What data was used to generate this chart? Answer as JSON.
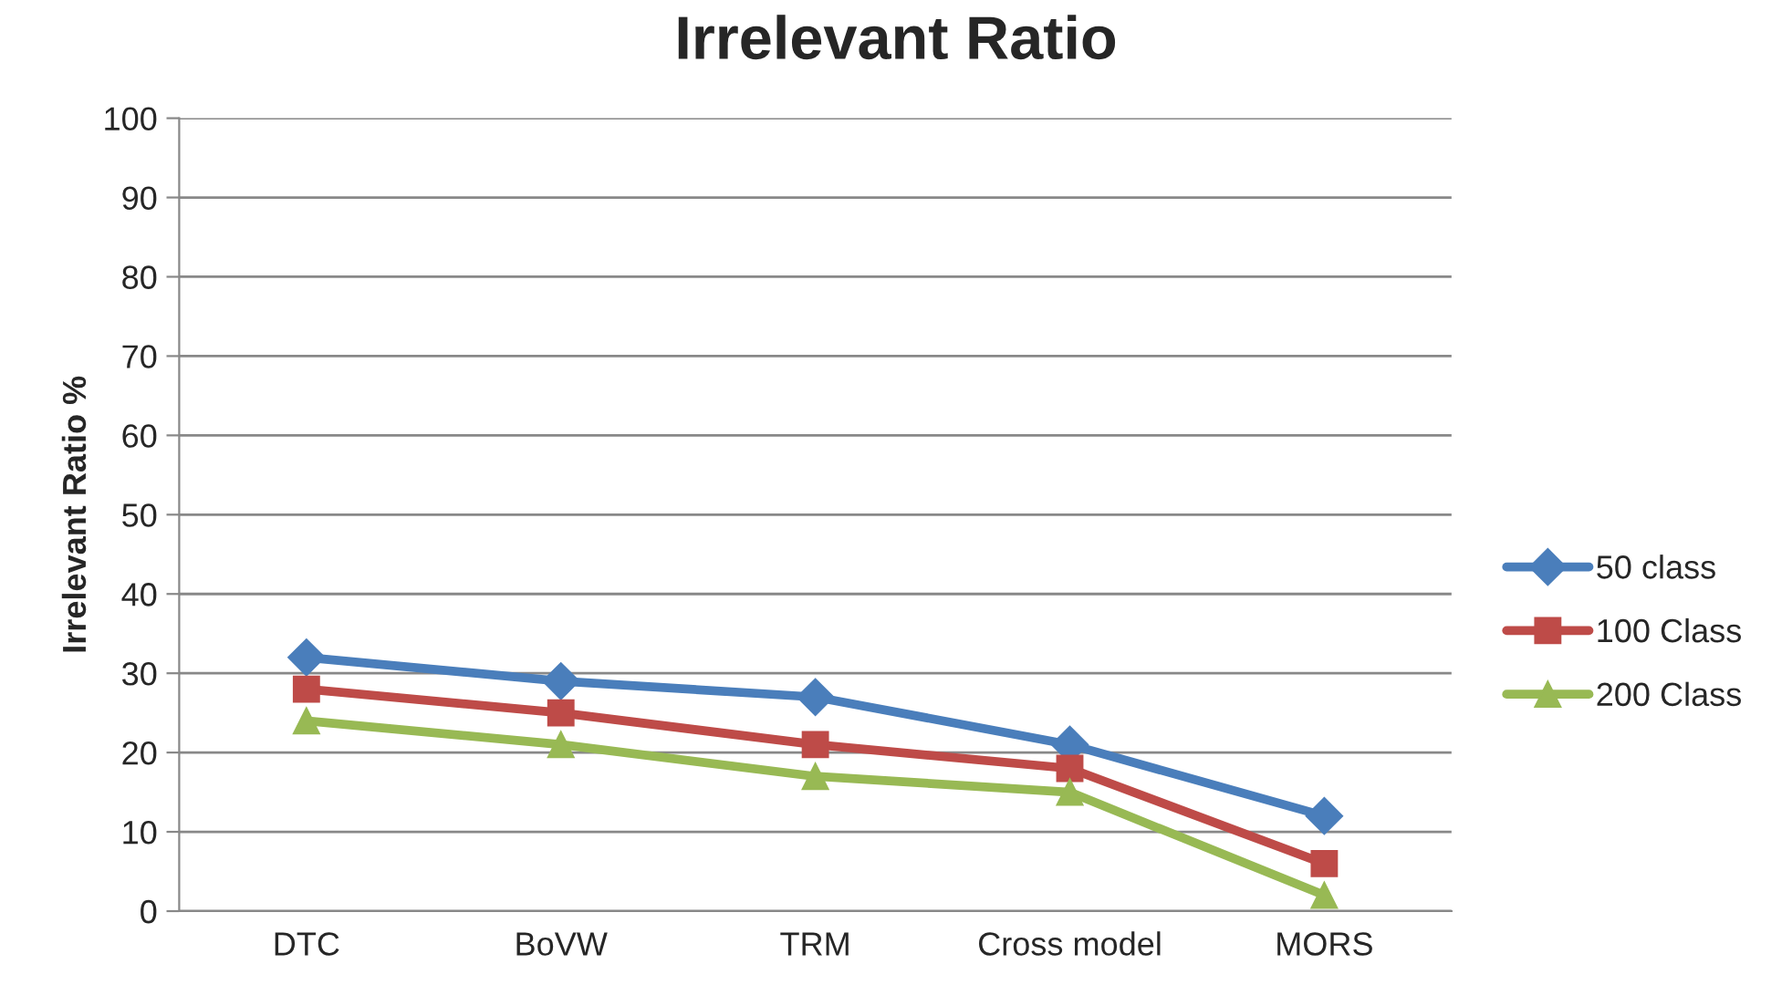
{
  "chart_data": {
    "type": "line",
    "title": "Irrelevant Ratio",
    "ylabel": "Irrelevant Ratio %",
    "categories": [
      "DTC",
      "BoVW",
      "TRM",
      "Cross model",
      "MORS"
    ],
    "series": [
      {
        "name": "50 class",
        "color": "#4a7ebb",
        "marker": "diamond",
        "values": [
          32,
          29,
          27,
          21,
          12
        ]
      },
      {
        "name": "100 Class",
        "color": "#be4b48",
        "marker": "square",
        "values": [
          28,
          25,
          21,
          18,
          6
        ]
      },
      {
        "name": "200 Class",
        "color": "#98b954",
        "marker": "triangle",
        "values": [
          24,
          21,
          17,
          15,
          2
        ]
      }
    ],
    "ylim": [
      0,
      100
    ],
    "yticks": [
      0,
      10,
      20,
      30,
      40,
      50,
      60,
      70,
      80,
      90,
      100
    ],
    "grid": "y",
    "legend": "right",
    "line_style": "solid"
  }
}
